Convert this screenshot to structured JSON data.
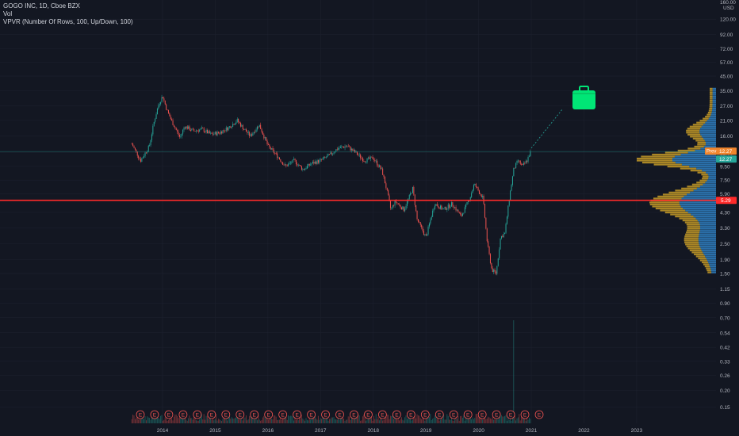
{
  "header": {
    "symbol_line": "GOGO INC, 1D, Cboe BZX",
    "vol_label": "Vol",
    "vpvr_label": "VPVR (Number Of Rows, 100, Up/Down, 100)"
  },
  "chart_data": {
    "type": "candlestick",
    "price_axis": {
      "scale": "log",
      "currency_label": "USD",
      "top_label": "160.00",
      "ticks": [
        "120.00",
        "92.00",
        "72.00",
        "57.00",
        "45.00",
        "35.00",
        "27.00",
        "21.00",
        "16.00",
        "12.00",
        "9.50",
        "7.50",
        "5.90",
        "4.30",
        "3.30",
        "2.50",
        "1.90",
        "1.50",
        "1.15",
        "0.90",
        "0.70",
        "0.54",
        "0.42",
        "0.33",
        "0.26",
        "0.20",
        "0.15"
      ]
    },
    "time_axis": {
      "ticks": [
        "2014",
        "2015",
        "2016",
        "2017",
        "2018",
        "2019",
        "2020",
        "2021",
        "2022",
        "2023"
      ]
    },
    "price_path": [
      [
        "2013-06",
        14.0
      ],
      [
        "2013-08",
        10.5
      ],
      [
        "2013-10",
        13.5
      ],
      [
        "2013-11",
        20.0
      ],
      [
        "2013-12",
        27.0
      ],
      [
        "2014-01",
        32.0
      ],
      [
        "2014-02",
        25.0
      ],
      [
        "2014-03",
        21.0
      ],
      [
        "2014-05",
        15.5
      ],
      [
        "2014-06",
        19.0
      ],
      [
        "2014-08",
        17.5
      ],
      [
        "2014-10",
        18.0
      ],
      [
        "2014-12",
        16.5
      ],
      [
        "2015-02",
        17.0
      ],
      [
        "2015-04",
        18.5
      ],
      [
        "2015-06",
        21.0
      ],
      [
        "2015-07",
        19.0
      ],
      [
        "2015-09",
        16.0
      ],
      [
        "2015-11",
        19.5
      ],
      [
        "2016-01",
        13.5
      ],
      [
        "2016-03",
        11.5
      ],
      [
        "2016-05",
        9.5
      ],
      [
        "2016-07",
        10.5
      ],
      [
        "2016-09",
        9.0
      ],
      [
        "2016-11",
        10.0
      ],
      [
        "2017-01",
        10.5
      ],
      [
        "2017-03",
        11.5
      ],
      [
        "2017-05",
        13.0
      ],
      [
        "2017-07",
        13.5
      ],
      [
        "2017-09",
        12.0
      ],
      [
        "2017-11",
        10.5
      ],
      [
        "2018-01",
        11.0
      ],
      [
        "2018-03",
        8.8
      ],
      [
        "2018-04",
        6.5
      ],
      [
        "2018-05",
        4.5
      ],
      [
        "2018-06",
        5.2
      ],
      [
        "2018-08",
        4.5
      ],
      [
        "2018-10",
        6.5
      ],
      [
        "2018-11",
        3.8
      ],
      [
        "2019-01",
        2.8
      ],
      [
        "2019-03",
        5.0
      ],
      [
        "2019-05",
        4.5
      ],
      [
        "2019-07",
        5.0
      ],
      [
        "2019-09",
        4.0
      ],
      [
        "2019-11",
        5.5
      ],
      [
        "2019-12",
        7.0
      ],
      [
        "2020-02",
        5.5
      ],
      [
        "2020-03",
        2.5
      ],
      [
        "2020-04",
        1.6
      ],
      [
        "2020-05",
        1.5
      ],
      [
        "2020-06",
        2.8
      ],
      [
        "2020-07",
        3.0
      ],
      [
        "2020-08",
        5.5
      ],
      [
        "2020-09",
        9.0
      ],
      [
        "2020-10",
        10.5
      ],
      [
        "2020-11",
        9.5
      ],
      [
        "2020-12",
        10.5
      ],
      [
        "2021-01",
        12.5
      ]
    ],
    "badges": {
      "last_price_label": "12.27",
      "last_price_tag": "Prev",
      "vwap_label": "12.27",
      "resistance_label": "5.29"
    },
    "horizontal_line": {
      "price": 5.29,
      "color": "#ff2a2a"
    },
    "earnings_markers": {
      "label": "E",
      "count": 29
    },
    "colors": {
      "up": "#26a69a",
      "down": "#ef5350",
      "vp_up": "#2f7fc1",
      "vp_down": "#c49a27",
      "resistance": "#ff2a2a",
      "icon": "#00e676"
    },
    "icon": "briefcase-icon"
  }
}
